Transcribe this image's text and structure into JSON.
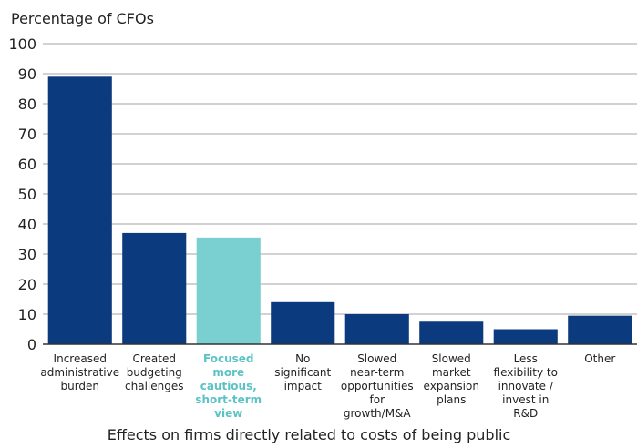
{
  "chart_data": {
    "type": "bar",
    "ylabel": "Percentage of CFOs",
    "xlabel": "Effects on firms directly related to costs of being public",
    "ylim": [
      0,
      100
    ],
    "yticks": [
      0,
      10,
      20,
      30,
      40,
      50,
      60,
      70,
      80,
      90,
      100
    ],
    "grid": true,
    "categories": [
      "Increased administrative burden",
      "Created budgeting challenges",
      "Focused more cautious, short-term view",
      "No significant impact",
      "Slowed near-term opportunities for growth/M&A",
      "Slowed market expansion plans",
      "Less flexibility to innovate / invest in R&D",
      "Other"
    ],
    "category_lines": [
      [
        "Increased",
        "administrative",
        "burden"
      ],
      [
        "Created",
        "budgeting",
        "challenges"
      ],
      [
        "Focused",
        "more",
        "cautious,",
        "short-term",
        "view"
      ],
      [
        "No",
        "significant",
        "impact"
      ],
      [
        "Slowed",
        "near-term",
        "opportunities",
        "for",
        "growth/M&A"
      ],
      [
        "Slowed",
        "market",
        "expansion",
        "plans"
      ],
      [
        "Less",
        "flexibility to",
        "innovate /",
        "invest in",
        "R&D"
      ],
      [
        "Other"
      ]
    ],
    "values": [
      89,
      37,
      35.5,
      14,
      10,
      7.5,
      5,
      9.5
    ],
    "highlight_index": 2,
    "colors": {
      "bar": "#0b3a7e",
      "highlight": "#7acfd0",
      "grid": "#a6a6a6",
      "axis": "#333333"
    }
  }
}
